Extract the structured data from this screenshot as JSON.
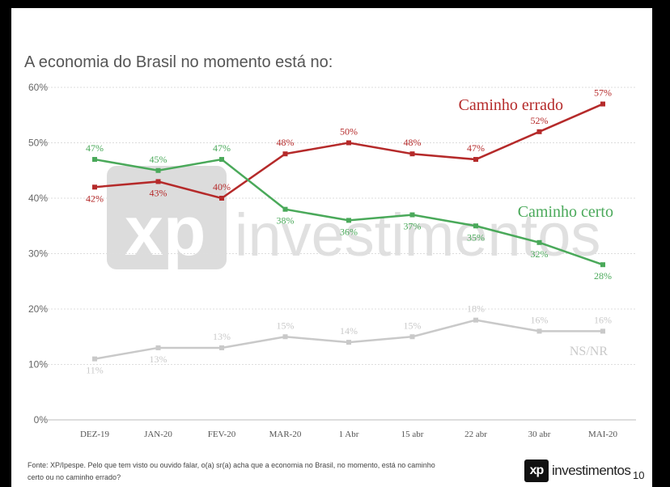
{
  "title": "A economia do Brasil no momento está no:",
  "footer": {
    "source_line1": "Fonte: XP/Ipespe. Pelo que tem visto ou ouvido falar, o(a) sr(a) acha que a economia no Brasil, no momento, está no caminho",
    "source_line2": "certo ou no caminho errado?"
  },
  "logo": {
    "mark": "xp",
    "text": "investimentos"
  },
  "page_number": "10",
  "watermark": {
    "mark": "xp",
    "text": "investimentos"
  },
  "chart_data": {
    "type": "line",
    "categories": [
      "DEZ-19",
      "JAN-20",
      "FEV-20",
      "MAR-20",
      "1 Abr",
      "15 abr",
      "22 abr",
      "30 abr",
      "MAI-20"
    ],
    "ylim": [
      0,
      60
    ],
    "y_ticks": [
      "0%",
      "10%",
      "20%",
      "30%",
      "40%",
      "50%",
      "60%"
    ],
    "grid": true,
    "series": [
      {
        "name": "Caminho errado",
        "color": "#b52a2a",
        "values": [
          42,
          43,
          40,
          48,
          50,
          48,
          47,
          52,
          57
        ],
        "labels": [
          "42%",
          "43%",
          "40%",
          "48%",
          "50%",
          "48%",
          "47%",
          "52%",
          "57%"
        ]
      },
      {
        "name": "Caminho certo",
        "color": "#4aa95a",
        "values": [
          47,
          45,
          47,
          38,
          36,
          37,
          35,
          32,
          28
        ],
        "labels": [
          "47%",
          "45%",
          "47%",
          "38%",
          "36%",
          "37%",
          "35%",
          "32%",
          "28%"
        ]
      },
      {
        "name": "NS/NR",
        "color": "#c9c9c9",
        "values": [
          11,
          13,
          13,
          15,
          14,
          15,
          18,
          16,
          16
        ],
        "labels": [
          "11%",
          "13%",
          "13%",
          "15%",
          "14%",
          "15%",
          "18%",
          "16%",
          "16%"
        ]
      }
    ]
  }
}
